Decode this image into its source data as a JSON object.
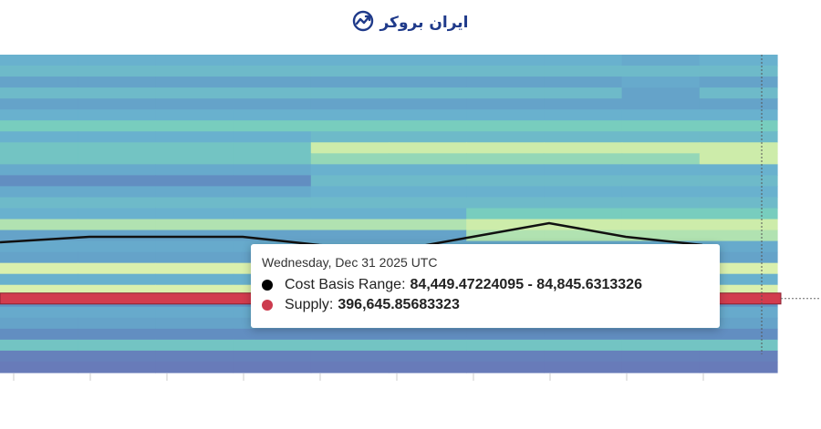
{
  "logo": {
    "text": "ایران بروکر",
    "icon": "trend-chart-icon",
    "color": "#1f3a8a"
  },
  "tooltip": {
    "date": "Wednesday, Dec 31 2025 UTC",
    "cost_basis_label": "Cost Basis Range:",
    "cost_basis_value": "84,449.47224095 - 84,845.6313326",
    "cost_basis_color": "#000000",
    "supply_label": "Supply:",
    "supply_value": "396,645.85683323",
    "supply_color": "#cc3b4e"
  },
  "chart_data": {
    "type": "heatmap",
    "description_colors": {
      "low": "#6f6fb8",
      "mid": "#6aaed2",
      "high": "#f2f7b3"
    },
    "highlight_band_color": "#d23c4e",
    "grid": false,
    "columns": 10,
    "rows": [
      [
        0.55,
        0.55,
        0.55,
        0.55,
        0.55,
        0.55,
        0.55,
        0.55,
        0.5,
        0.55
      ],
      [
        0.6,
        0.6,
        0.6,
        0.6,
        0.6,
        0.6,
        0.6,
        0.6,
        0.6,
        0.6
      ],
      [
        0.45,
        0.45,
        0.45,
        0.45,
        0.45,
        0.45,
        0.45,
        0.45,
        0.5,
        0.45
      ],
      [
        0.6,
        0.6,
        0.6,
        0.6,
        0.6,
        0.6,
        0.6,
        0.6,
        0.45,
        0.6
      ],
      [
        0.45,
        0.45,
        0.45,
        0.45,
        0.45,
        0.45,
        0.45,
        0.45,
        0.45,
        0.45
      ],
      [
        0.55,
        0.55,
        0.55,
        0.55,
        0.55,
        0.55,
        0.55,
        0.55,
        0.55,
        0.55
      ],
      [
        0.7,
        0.7,
        0.7,
        0.7,
        0.7,
        0.7,
        0.7,
        0.7,
        0.7,
        0.7
      ],
      [
        0.55,
        0.55,
        0.55,
        0.55,
        0.6,
        0.6,
        0.6,
        0.6,
        0.6,
        0.6
      ],
      [
        0.65,
        0.65,
        0.65,
        0.65,
        0.85,
        0.85,
        0.85,
        0.85,
        0.85,
        0.85
      ],
      [
        0.65,
        0.65,
        0.65,
        0.65,
        0.75,
        0.75,
        0.75,
        0.75,
        0.75,
        0.85
      ],
      [
        0.5,
        0.5,
        0.5,
        0.5,
        0.55,
        0.55,
        0.55,
        0.55,
        0.55,
        0.55
      ],
      [
        0.3,
        0.3,
        0.3,
        0.3,
        0.6,
        0.6,
        0.6,
        0.6,
        0.6,
        0.6
      ],
      [
        0.5,
        0.5,
        0.5,
        0.5,
        0.55,
        0.55,
        0.55,
        0.55,
        0.55,
        0.55
      ],
      [
        0.6,
        0.6,
        0.6,
        0.6,
        0.6,
        0.6,
        0.6,
        0.6,
        0.6,
        0.6
      ],
      [
        0.55,
        0.55,
        0.55,
        0.55,
        0.55,
        0.55,
        0.7,
        0.7,
        0.7,
        0.7
      ],
      [
        0.8,
        0.8,
        0.8,
        0.8,
        0.8,
        0.8,
        0.85,
        0.85,
        0.85,
        0.85
      ],
      [
        0.45,
        0.45,
        0.45,
        0.45,
        0.45,
        0.45,
        0.8,
        0.8,
        0.8,
        0.8
      ],
      [
        0.5,
        0.5,
        0.5,
        0.5,
        0.5,
        0.5,
        0.5,
        0.5,
        0.5,
        0.5
      ],
      [
        0.45,
        0.45,
        0.45,
        0.45,
        0.45,
        0.45,
        0.45,
        0.45,
        0.45,
        0.45
      ],
      [
        0.9,
        0.9,
        0.9,
        0.9,
        0.9,
        0.9,
        0.9,
        0.9,
        0.9,
        0.9
      ],
      [
        0.55,
        0.55,
        0.55,
        0.55,
        0.55,
        0.55,
        0.55,
        0.55,
        0.55,
        0.55
      ],
      [
        0.9,
        0.9,
        0.9,
        0.9,
        0.9,
        0.9,
        0.9,
        0.9,
        0.9,
        0.9
      ],
      [
        0.35,
        0.35,
        0.35,
        0.35,
        0.35,
        0.35,
        0.35,
        0.35,
        0.35,
        0.35
      ],
      [
        0.5,
        0.5,
        0.5,
        0.5,
        0.5,
        0.5,
        0.5,
        0.5,
        0.5,
        0.5
      ],
      [
        0.45,
        0.45,
        0.45,
        0.45,
        0.45,
        0.45,
        0.45,
        0.45,
        0.45,
        0.45
      ],
      [
        0.3,
        0.3,
        0.3,
        0.3,
        0.3,
        0.3,
        0.3,
        0.3,
        0.3,
        0.3
      ],
      [
        0.65,
        0.65,
        0.65,
        0.65,
        0.65,
        0.65,
        0.65,
        0.65,
        0.65,
        0.65
      ],
      [
        0.2,
        0.2,
        0.2,
        0.2,
        0.2,
        0.2,
        0.2,
        0.2,
        0.2,
        0.2
      ],
      [
        0.15,
        0.15,
        0.15,
        0.15,
        0.15,
        0.15,
        0.15,
        0.15,
        0.15,
        0.15
      ]
    ],
    "highlight_row": 22,
    "line_series": {
      "name": "",
      "values": [
        0.58,
        0.6,
        0.6,
        0.6,
        0.57,
        0.55,
        0.6,
        0.65,
        0.6,
        0.57
      ]
    }
  }
}
